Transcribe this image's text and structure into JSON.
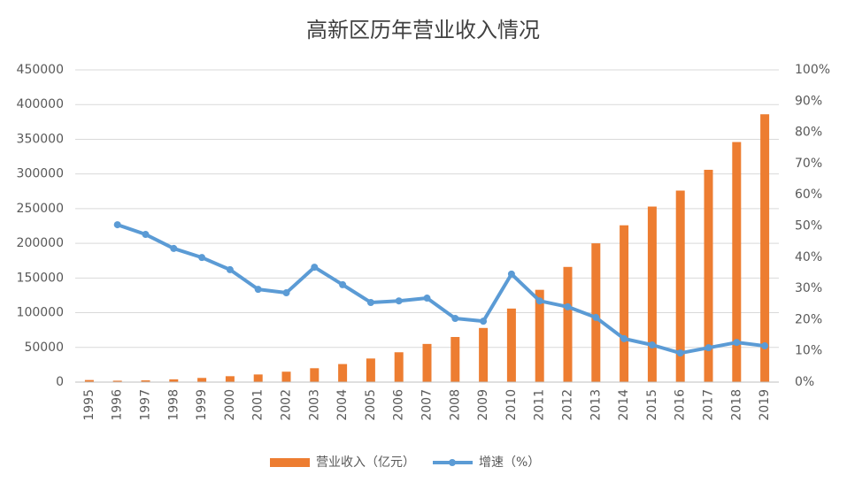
{
  "chart_data": {
    "type": "bar_line",
    "title": "高新区历年营业收入情况",
    "categories": [
      "1995",
      "1996",
      "1997",
      "1998",
      "1999",
      "2000",
      "2001",
      "2002",
      "2003",
      "2004",
      "2005",
      "2006",
      "2007",
      "2008",
      "2009",
      "2010",
      "2011",
      "2012",
      "2013",
      "2014",
      "2015",
      "2016",
      "2017",
      "2018",
      "2019"
    ],
    "series": [
      {
        "name": "营业收入（亿元）",
        "type": "bar",
        "color": "#ed7d31",
        "values": [
          3000,
          2000,
          2500,
          4000,
          6000,
          8500,
          11000,
          15000,
          20000,
          26000,
          34000,
          43000,
          55000,
          65000,
          78000,
          106000,
          133000,
          166000,
          200000,
          226000,
          253000,
          276000,
          306000,
          346000,
          386000
        ]
      },
      {
        "name": "增速（%）",
        "type": "line",
        "axis": "y2",
        "color": "#5b9bd5",
        "values": [
          null,
          50.4,
          47.3,
          42.8,
          39.9,
          36,
          29.7,
          28.6,
          36.8,
          31.2,
          25.5,
          26,
          26.9,
          20.4,
          19.5,
          34.6,
          26,
          24.1,
          20.7,
          13.9,
          11.9,
          9.3,
          11,
          12.7,
          11.6
        ]
      }
    ],
    "ylim": [
      0,
      450000
    ],
    "yticks": [
      0,
      50000,
      100000,
      150000,
      200000,
      250000,
      300000,
      350000,
      400000,
      450000
    ],
    "y2lim": [
      0,
      100
    ],
    "y2ticks": [
      {
        "value": 0,
        "label": "0%"
      },
      {
        "value": 10,
        "label": "10%"
      },
      {
        "value": 20,
        "label": "20%"
      },
      {
        "value": 30,
        "label": "30%"
      },
      {
        "value": 40,
        "label": "40%"
      },
      {
        "value": 50,
        "label": "50%"
      },
      {
        "value": 60,
        "label": "60%"
      },
      {
        "value": 70,
        "label": "70%"
      },
      {
        "value": 80,
        "label": "80%"
      },
      {
        "value": 90,
        "label": "90%"
      },
      {
        "value": 100,
        "label": "100%"
      }
    ],
    "grid": true
  }
}
